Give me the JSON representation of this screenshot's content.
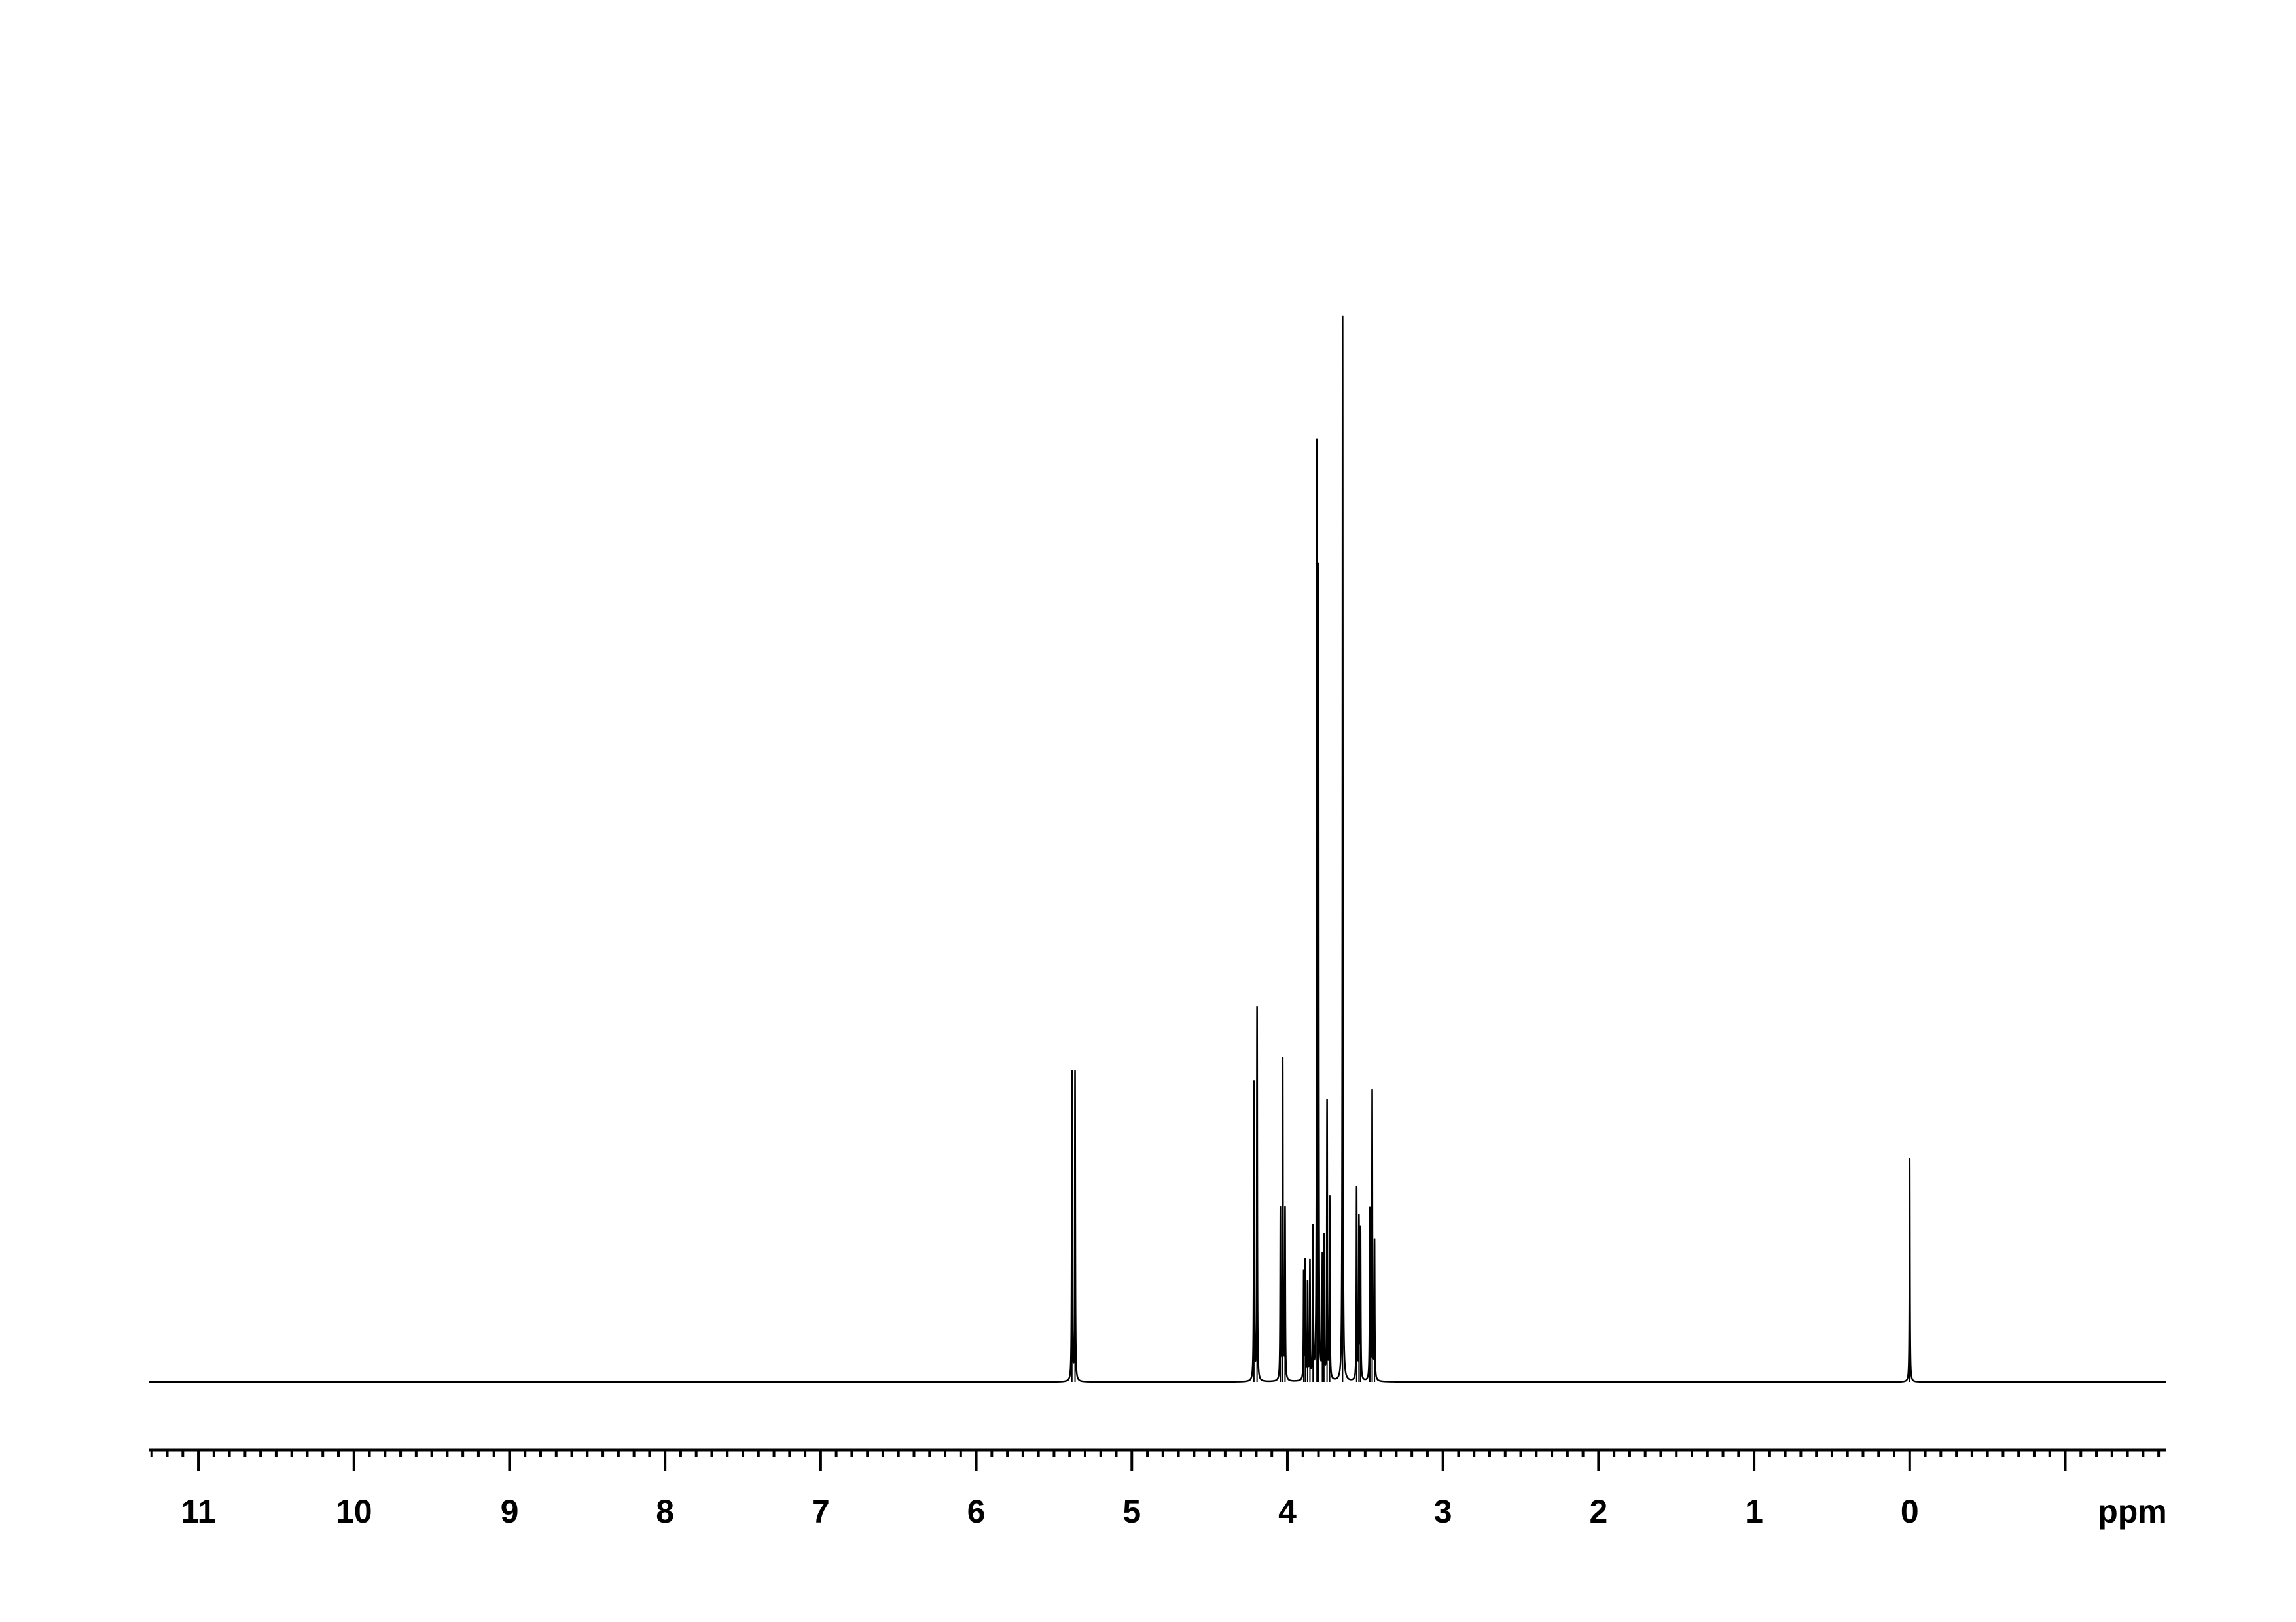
{
  "chart_data": {
    "type": "line",
    "title": "",
    "xlabel": "ppm",
    "ylabel": "",
    "xlim": [
      11.32,
      -1.65
    ],
    "x_reversed": true,
    "grid": false,
    "legend": "none",
    "color": "#000000",
    "x_ticks": [
      {
        "value": 11,
        "label": "11"
      },
      {
        "value": 10,
        "label": "10"
      },
      {
        "value": 9,
        "label": "9"
      },
      {
        "value": 8,
        "label": "8"
      },
      {
        "value": 7,
        "label": "7"
      },
      {
        "value": 6,
        "label": "6"
      },
      {
        "value": 5,
        "label": "5"
      },
      {
        "value": 4,
        "label": "4"
      },
      {
        "value": 3,
        "label": "3"
      },
      {
        "value": 2,
        "label": "2"
      },
      {
        "value": 1,
        "label": "1"
      },
      {
        "value": 0,
        "label": "0"
      },
      {
        "value": -1,
        "label": ""
      }
    ],
    "minor_tick_step": 0.1,
    "peaks": [
      {
        "ppm": 5.385,
        "intensity": 0.29
      },
      {
        "ppm": 5.365,
        "intensity": 0.29
      },
      {
        "ppm": 4.215,
        "intensity": 0.28
      },
      {
        "ppm": 4.195,
        "intensity": 0.35
      },
      {
        "ppm": 4.045,
        "intensity": 0.16
      },
      {
        "ppm": 4.03,
        "intensity": 0.3
      },
      {
        "ppm": 4.015,
        "intensity": 0.16
      },
      {
        "ppm": 3.895,
        "intensity": 0.1
      },
      {
        "ppm": 3.885,
        "intensity": 0.11
      },
      {
        "ppm": 3.87,
        "intensity": 0.09
      },
      {
        "ppm": 3.855,
        "intensity": 0.11
      },
      {
        "ppm": 3.835,
        "intensity": 0.14
      },
      {
        "ppm": 3.81,
        "intensity": 0.86
      },
      {
        "ppm": 3.8,
        "intensity": 0.74
      },
      {
        "ppm": 3.775,
        "intensity": 0.11
      },
      {
        "ppm": 3.765,
        "intensity": 0.13
      },
      {
        "ppm": 3.745,
        "intensity": 0.26
      },
      {
        "ppm": 3.728,
        "intensity": 0.17
      },
      {
        "ppm": 3.645,
        "intensity": 1.0
      },
      {
        "ppm": 3.555,
        "intensity": 0.18
      },
      {
        "ppm": 3.54,
        "intensity": 0.15
      },
      {
        "ppm": 3.53,
        "intensity": 0.14
      },
      {
        "ppm": 3.47,
        "intensity": 0.16
      },
      {
        "ppm": 3.455,
        "intensity": 0.27
      },
      {
        "ppm": 3.44,
        "intensity": 0.13
      },
      {
        "ppm": 0.0,
        "intensity": 0.21
      }
    ]
  }
}
